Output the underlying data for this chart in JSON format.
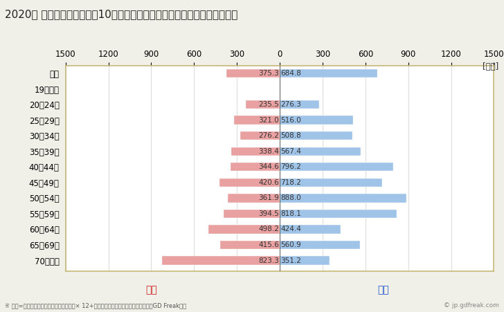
{
  "title": "2020年 民間企業（従業者数10人以上）フルタイム労働者の男女別平均年収",
  "unit_label": "[万円]",
  "footnote": "※ 年収=「きまって支給する現金給与額」× 12+「年間賞与その他特別給与額」としてGD Freak推計",
  "watermark": "© jp.gdfreak.com",
  "categories": [
    "全体",
    "19歳以下",
    "20～24歳",
    "25～29歳",
    "30～34歳",
    "35～39歳",
    "40～44歳",
    "45～49歳",
    "50～54歳",
    "55～59歳",
    "60～64歳",
    "65～69歳",
    "70歳以上"
  ],
  "female_values": [
    375.3,
    0,
    235.5,
    321.0,
    276.2,
    338.4,
    344.6,
    420.6,
    361.9,
    394.5,
    498.2,
    415.6,
    823.3
  ],
  "male_values": [
    684.8,
    0,
    276.3,
    516.0,
    508.8,
    567.4,
    796.2,
    718.2,
    888.0,
    818.1,
    424.4,
    560.9,
    351.2
  ],
  "female_color": "#e8a0a0",
  "male_color": "#a0c4e8",
  "female_label": "女性",
  "male_label": "男性",
  "female_label_color": "#cc2222",
  "male_label_color": "#2255cc",
  "xlim": 1500,
  "background_color": "#f0f0e8",
  "plot_bg_color": "#ffffff",
  "border_color": "#c8b87a",
  "title_fontsize": 11,
  "tick_fontsize": 8.5,
  "label_fontsize": 8.5,
  "value_fontsize": 7.5
}
